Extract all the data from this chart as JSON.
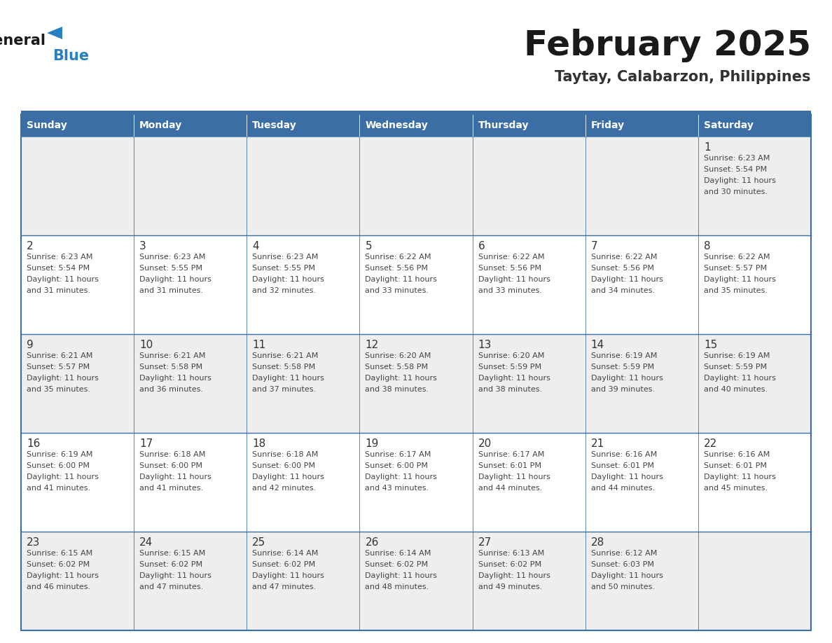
{
  "title": "February 2025",
  "subtitle": "Taytay, Calabarzon, Philippines",
  "header_bg_color": "#3a6ea5",
  "header_text_color": "#ffffff",
  "day_names": [
    "Sunday",
    "Monday",
    "Tuesday",
    "Wednesday",
    "Thursday",
    "Friday",
    "Saturday"
  ],
  "row_bg_colors": [
    "#eeeeee",
    "#ffffff",
    "#eeeeee",
    "#ffffff",
    "#eeeeee"
  ],
  "border_color": "#3a6ea5",
  "cell_text_color": "#444444",
  "date_text_color": "#333333",
  "title_color": "#1a1a1a",
  "subtitle_color": "#333333",
  "logo_general_color": "#1a1a1a",
  "logo_blue_color": "#2980c0",
  "calendar_data": [
    [
      null,
      null,
      null,
      null,
      null,
      null,
      {
        "day": 1,
        "sunrise": "6:23 AM",
        "sunset": "5:54 PM",
        "daylight": "11 hours and 30 minutes."
      }
    ],
    [
      {
        "day": 2,
        "sunrise": "6:23 AM",
        "sunset": "5:54 PM",
        "daylight": "11 hours and 31 minutes."
      },
      {
        "day": 3,
        "sunrise": "6:23 AM",
        "sunset": "5:55 PM",
        "daylight": "11 hours and 31 minutes."
      },
      {
        "day": 4,
        "sunrise": "6:23 AM",
        "sunset": "5:55 PM",
        "daylight": "11 hours and 32 minutes."
      },
      {
        "day": 5,
        "sunrise": "6:22 AM",
        "sunset": "5:56 PM",
        "daylight": "11 hours and 33 minutes."
      },
      {
        "day": 6,
        "sunrise": "6:22 AM",
        "sunset": "5:56 PM",
        "daylight": "11 hours and 33 minutes."
      },
      {
        "day": 7,
        "sunrise": "6:22 AM",
        "sunset": "5:56 PM",
        "daylight": "11 hours and 34 minutes."
      },
      {
        "day": 8,
        "sunrise": "6:22 AM",
        "sunset": "5:57 PM",
        "daylight": "11 hours and 35 minutes."
      }
    ],
    [
      {
        "day": 9,
        "sunrise": "6:21 AM",
        "sunset": "5:57 PM",
        "daylight": "11 hours and 35 minutes."
      },
      {
        "day": 10,
        "sunrise": "6:21 AM",
        "sunset": "5:58 PM",
        "daylight": "11 hours and 36 minutes."
      },
      {
        "day": 11,
        "sunrise": "6:21 AM",
        "sunset": "5:58 PM",
        "daylight": "11 hours and 37 minutes."
      },
      {
        "day": 12,
        "sunrise": "6:20 AM",
        "sunset": "5:58 PM",
        "daylight": "11 hours and 38 minutes."
      },
      {
        "day": 13,
        "sunrise": "6:20 AM",
        "sunset": "5:59 PM",
        "daylight": "11 hours and 38 minutes."
      },
      {
        "day": 14,
        "sunrise": "6:19 AM",
        "sunset": "5:59 PM",
        "daylight": "11 hours and 39 minutes."
      },
      {
        "day": 15,
        "sunrise": "6:19 AM",
        "sunset": "5:59 PM",
        "daylight": "11 hours and 40 minutes."
      }
    ],
    [
      {
        "day": 16,
        "sunrise": "6:19 AM",
        "sunset": "6:00 PM",
        "daylight": "11 hours and 41 minutes."
      },
      {
        "day": 17,
        "sunrise": "6:18 AM",
        "sunset": "6:00 PM",
        "daylight": "11 hours and 41 minutes."
      },
      {
        "day": 18,
        "sunrise": "6:18 AM",
        "sunset": "6:00 PM",
        "daylight": "11 hours and 42 minutes."
      },
      {
        "day": 19,
        "sunrise": "6:17 AM",
        "sunset": "6:00 PM",
        "daylight": "11 hours and 43 minutes."
      },
      {
        "day": 20,
        "sunrise": "6:17 AM",
        "sunset": "6:01 PM",
        "daylight": "11 hours and 44 minutes."
      },
      {
        "day": 21,
        "sunrise": "6:16 AM",
        "sunset": "6:01 PM",
        "daylight": "11 hours and 44 minutes."
      },
      {
        "day": 22,
        "sunrise": "6:16 AM",
        "sunset": "6:01 PM",
        "daylight": "11 hours and 45 minutes."
      }
    ],
    [
      {
        "day": 23,
        "sunrise": "6:15 AM",
        "sunset": "6:02 PM",
        "daylight": "11 hours and 46 minutes."
      },
      {
        "day": 24,
        "sunrise": "6:15 AM",
        "sunset": "6:02 PM",
        "daylight": "11 hours and 47 minutes."
      },
      {
        "day": 25,
        "sunrise": "6:14 AM",
        "sunset": "6:02 PM",
        "daylight": "11 hours and 47 minutes."
      },
      {
        "day": 26,
        "sunrise": "6:14 AM",
        "sunset": "6:02 PM",
        "daylight": "11 hours and 48 minutes."
      },
      {
        "day": 27,
        "sunrise": "6:13 AM",
        "sunset": "6:02 PM",
        "daylight": "11 hours and 49 minutes."
      },
      {
        "day": 28,
        "sunrise": "6:12 AM",
        "sunset": "6:03 PM",
        "daylight": "11 hours and 50 minutes."
      },
      null
    ]
  ]
}
